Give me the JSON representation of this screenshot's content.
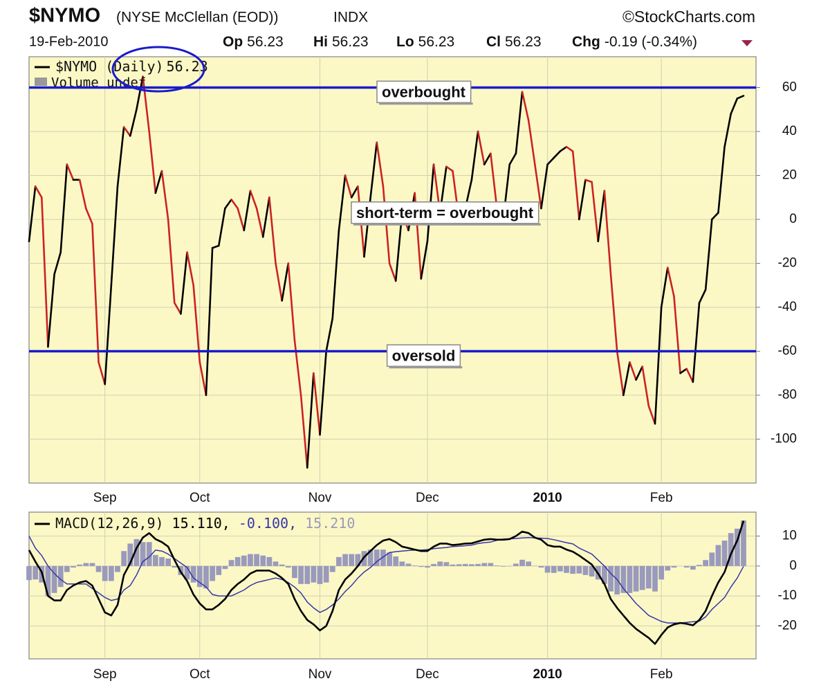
{
  "header": {
    "symbol": "$NYMO",
    "name": "(NYSE McClellan (EOD))",
    "exchange": "INDX",
    "source": "©StockCharts.com",
    "date": "19-Feb-2010",
    "quote": [
      {
        "label": "Op",
        "value": "56.23"
      },
      {
        "label": "Hi",
        "value": "56.23"
      },
      {
        "label": "Lo",
        "value": "56.23"
      },
      {
        "label": "Cl",
        "value": "56.23"
      },
      {
        "label": "Chg",
        "value": "-0.19 (-0.34%)"
      }
    ]
  },
  "chart_data": [
    {
      "type": "line",
      "grid": true,
      "note": "Volume undef",
      "categories": [
        null,
        null,
        null,
        null,
        null,
        null,
        null,
        null,
        null,
        null,
        null,
        null,
        "Sep",
        null,
        null,
        null,
        null,
        null,
        null,
        null,
        null,
        null,
        null,
        null,
        null,
        null,
        null,
        "Oct",
        null,
        null,
        null,
        null,
        null,
        null,
        null,
        null,
        null,
        null,
        null,
        null,
        null,
        null,
        null,
        null,
        null,
        null,
        "Nov",
        null,
        null,
        null,
        null,
        null,
        null,
        null,
        null,
        null,
        null,
        null,
        null,
        null,
        null,
        null,
        null,
        "Dec",
        null,
        null,
        null,
        null,
        null,
        null,
        null,
        null,
        null,
        null,
        null,
        null,
        null,
        null,
        null,
        null,
        null,
        null,
        "2010",
        null,
        null,
        null,
        null,
        null,
        null,
        null,
        null,
        null,
        null,
        null,
        null,
        null,
        null,
        null,
        null,
        null,
        "Feb",
        null,
        null,
        null,
        null,
        null,
        null,
        null,
        null,
        null,
        null,
        null,
        null,
        null
      ],
      "series": [
        {
          "name": "$NYMO (Daily)",
          "up_color": "#000000",
          "down_color": "#cc2222",
          "values": [
            -10,
            15,
            10,
            -58,
            -25,
            -15,
            25,
            18,
            18,
            5,
            -2,
            -65,
            -75,
            -30,
            15,
            42,
            38,
            50,
            65,
            40,
            12,
            22,
            0,
            -38,
            -43,
            -15,
            -30,
            -65,
            -80,
            -13,
            -12,
            5,
            9,
            5,
            -5,
            13,
            5,
            -8,
            10,
            -20,
            -37,
            -20,
            -55,
            -80,
            -113,
            -70,
            -98,
            -60,
            -45,
            -5,
            20,
            10,
            15,
            -17,
            10,
            35,
            15,
            -20,
            -28,
            3,
            -5,
            12,
            -27,
            -10,
            25,
            3,
            24,
            22,
            0,
            5,
            18,
            40,
            25,
            30,
            5,
            0,
            25,
            30,
            58,
            45,
            25,
            5,
            25,
            28,
            31,
            33,
            31,
            0,
            18,
            17,
            -10,
            13,
            -25,
            -60,
            -80,
            -65,
            -73,
            -67,
            -85,
            -93,
            -40,
            -22,
            -35,
            -70,
            -68,
            -74,
            -38,
            -32,
            0,
            3,
            33,
            48,
            55,
            56.23
          ]
        }
      ],
      "reference_lines": [
        {
          "value": 60,
          "label": "overbought",
          "color": "#1a1acc"
        },
        {
          "value": -60,
          "label": "oversold",
          "color": "#1a1acc"
        }
      ],
      "annotations": [
        "short-term = overbought"
      ],
      "ylim": [
        -120,
        74
      ],
      "yticks": [
        60,
        40,
        20,
        0,
        -20,
        -40,
        -60,
        -80,
        -100
      ]
    },
    {
      "type": "line",
      "grid": true,
      "legend_title": "MACD(12,26,9)",
      "categories": [
        null,
        null,
        null,
        null,
        null,
        null,
        null,
        null,
        null,
        null,
        null,
        null,
        "Sep",
        null,
        null,
        null,
        null,
        null,
        null,
        null,
        null,
        null,
        null,
        null,
        null,
        null,
        null,
        "Oct",
        null,
        null,
        null,
        null,
        null,
        null,
        null,
        null,
        null,
        null,
        null,
        null,
        null,
        null,
        null,
        null,
        null,
        null,
        "Nov",
        null,
        null,
        null,
        null,
        null,
        null,
        null,
        null,
        null,
        null,
        null,
        null,
        null,
        null,
        null,
        null,
        "Dec",
        null,
        null,
        null,
        null,
        null,
        null,
        null,
        null,
        null,
        null,
        null,
        null,
        null,
        null,
        null,
        null,
        null,
        null,
        "2010",
        null,
        null,
        null,
        null,
        null,
        null,
        null,
        null,
        null,
        null,
        null,
        null,
        null,
        null,
        null,
        null,
        null,
        "Feb",
        null,
        null,
        null,
        null,
        null,
        null,
        null,
        null,
        null,
        null,
        null,
        null,
        null
      ],
      "series": [
        {
          "type": "bar",
          "color": "#9a9abc",
          "values": [
            -4.7,
            -4.5,
            -5.5,
            -10,
            -9,
            -7,
            -2,
            -0.5,
            0.5,
            1,
            1,
            -2,
            -5,
            -5,
            -2,
            5,
            7.5,
            9,
            8,
            8,
            3.7,
            3,
            2.5,
            -0.5,
            -3,
            -4.5,
            -5.5,
            -7,
            -7.5,
            -5,
            -3,
            -1,
            2,
            3,
            3.5,
            4,
            4,
            3.5,
            3,
            1.5,
            0.5,
            -0.5,
            -4,
            -6,
            -6,
            -5.5,
            -6,
            -5.5,
            -2,
            3,
            4,
            4,
            4,
            5,
            5.5,
            5.5,
            5.5,
            4.5,
            3.2,
            1.5,
            0.8,
            0.2,
            -0.3,
            -0.5,
            0.7,
            1.5,
            1.3,
            0.5,
            0.6,
            0.7,
            0.6,
            0.7,
            1,
            1,
            0.2,
            -0.2,
            -0.1,
            0.8,
            2.1,
            1.5,
            0.1,
            -0.5,
            -2.2,
            -2.3,
            -1.8,
            -2.3,
            -2.6,
            -2.5,
            -3,
            -3.5,
            -4.5,
            -6,
            -8.5,
            -9.5,
            -9,
            -9,
            -8.5,
            -8,
            -7.5,
            -8.5,
            -4.5,
            -1.5,
            -0.5,
            0,
            -0.5,
            -1.2,
            0.4,
            2,
            4.5,
            7,
            8.5,
            11,
            12.5,
            15.21
          ]
        },
        {
          "type": "line",
          "color": "#3636a8",
          "width": 1.5,
          "values": [
            10,
            6,
            3.5,
            0,
            -2.5,
            -4.5,
            -6,
            -6,
            -6,
            -6,
            -7.5,
            -9,
            -10.5,
            -11.5,
            -11,
            -8,
            -6.5,
            -3,
            1.5,
            3,
            5.3,
            5,
            4,
            2.5,
            1,
            -0.5,
            -4,
            -5.5,
            -7,
            -9.5,
            -10,
            -10,
            -10,
            -9,
            -8,
            -6.5,
            -5.5,
            -5,
            -4.5,
            -4,
            -4.5,
            -5.5,
            -7,
            -9,
            -12,
            -14,
            -15.5,
            -14.5,
            -13,
            -11,
            -8.5,
            -6.5,
            -4,
            -2,
            -0.5,
            1.5,
            3,
            4.5,
            4.8,
            5,
            5.2,
            5.3,
            5.3,
            5.5,
            5.8,
            6,
            6.2,
            6.5,
            6.6,
            6.8,
            7,
            7.5,
            7.8,
            8,
            8.6,
            9,
            9.1,
            9.2,
            9.4,
            9.5,
            9.4,
            9.3,
            9.2,
            8.8,
            8.3,
            7.8,
            7.4,
            6,
            5,
            4,
            2,
            0,
            -2.5,
            -4.5,
            -7.5,
            -10,
            -12.5,
            -14.5,
            -16.5,
            -17.5,
            -18.5,
            -19,
            -19,
            -19,
            -18.8,
            -18.6,
            -18.4,
            -17,
            -14.5,
            -12.5,
            -10.5,
            -7,
            -4,
            -0.1
          ]
        },
        {
          "type": "line",
          "color": "#000000",
          "width": 2.6,
          "values": [
            5.3,
            1.5,
            -2,
            -10,
            -11.5,
            -11.5,
            -8,
            -6.5,
            -5.5,
            -5,
            -6.5,
            -11,
            -15.5,
            -16.5,
            -13,
            -3,
            1,
            6,
            9.5,
            11,
            9,
            8,
            6.5,
            2,
            -2,
            -5,
            -9.5,
            -12.5,
            -14.5,
            -14.5,
            -13,
            -11,
            -8,
            -6,
            -4.5,
            -2.5,
            -1.5,
            -1.5,
            -1.5,
            -2.5,
            -4,
            -6,
            -11,
            -15,
            -18,
            -19.5,
            -21.5,
            -20,
            -15,
            -8,
            -4.5,
            -2.5,
            0,
            3,
            5,
            7,
            8.5,
            9,
            8,
            6.5,
            6,
            5.5,
            5,
            5,
            6.5,
            7.5,
            7.5,
            7,
            7.2,
            7.5,
            7.6,
            8.2,
            8.8,
            9,
            8.8,
            8.8,
            9,
            10,
            11.5,
            11,
            9.5,
            8.8,
            7,
            6.5,
            6.5,
            5.5,
            4.8,
            3.5,
            2,
            0.5,
            -2.5,
            -6,
            -11,
            -14,
            -16.5,
            -19,
            -21,
            -22.5,
            -24,
            -26,
            -23,
            -20.5,
            -19.5,
            -19,
            -19.3,
            -19.8,
            -18,
            -15,
            -10,
            -5.5,
            -2,
            4,
            8.5,
            15.11
          ]
        }
      ],
      "readouts": [
        {
          "series": 2,
          "value": 15.11,
          "label": "15.110,"
        },
        {
          "series": 1,
          "value": -0.1,
          "label": "-0.100,"
        },
        {
          "series": 0,
          "value": 15.21,
          "label": "15.210"
        }
      ],
      "ylim": [
        -31,
        18
      ],
      "yticks": [
        10,
        0,
        -10,
        -20
      ]
    }
  ]
}
